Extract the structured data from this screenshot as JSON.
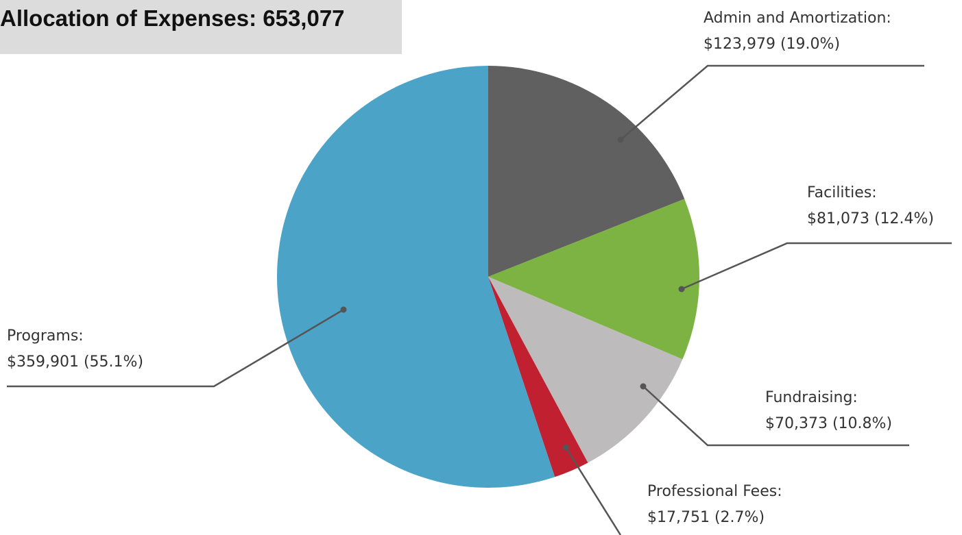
{
  "chart_data": {
    "type": "pie",
    "title": "Allocation of Expenses: 653,077",
    "slices": [
      {
        "label": "Admin and Amortization:",
        "value_text": "$123,979 (19.0%)",
        "value": 123979,
        "percent": 19.0,
        "color": "#606060"
      },
      {
        "label": "Facilities:",
        "value_text": "$81,073 (12.4%)",
        "value": 81073,
        "percent": 12.4,
        "color": "#7db343"
      },
      {
        "label": "Fundraising:",
        "value_text": "$70,373 (10.8%)",
        "value": 70373,
        "percent": 10.8,
        "color": "#bdbbbc"
      },
      {
        "label": "Professional Fees:",
        "value_text": "$17,751 (2.7%)",
        "value": 17751,
        "percent": 2.7,
        "color": "#c0202f"
      },
      {
        "label": "Programs:",
        "value_text": "$359,901 (55.1%)",
        "value": 359901,
        "percent": 55.1,
        "color": "#4ba3c7"
      }
    ],
    "start": "12 o'clock",
    "direction": "clockwise",
    "legend": "callout labels with leader lines"
  }
}
